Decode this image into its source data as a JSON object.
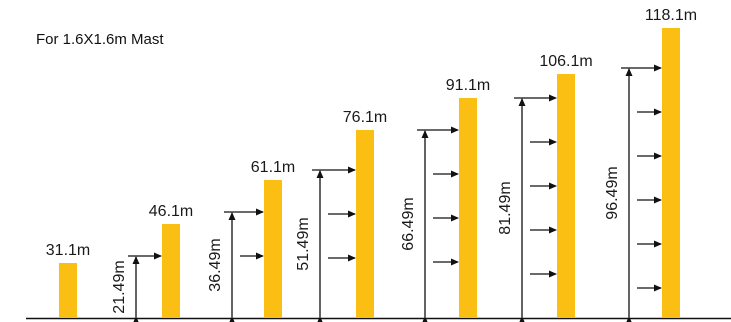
{
  "caption": "For 1.6X1.6m Mast",
  "colors": {
    "mast": "#FBBF14",
    "line": "#111111",
    "text": "#1a1a1a"
  },
  "masts": [
    {
      "height_label": "31.1m",
      "dimension_label": "",
      "side_arrows": 0
    },
    {
      "height_label": "46.1m",
      "dimension_label": "21.49m",
      "side_arrows": 1
    },
    {
      "height_label": "61.1m",
      "dimension_label": "36.49m",
      "side_arrows": 2
    },
    {
      "height_label": "76.1m",
      "dimension_label": "51.49m",
      "side_arrows": 3
    },
    {
      "height_label": "91.1m",
      "dimension_label": "66.49m",
      "side_arrows": 4
    },
    {
      "height_label": "106.1m",
      "dimension_label": "81.49m",
      "side_arrows": 5
    },
    {
      "height_label": "118.1m",
      "dimension_label": "96.49m",
      "side_arrows": 6
    }
  ]
}
